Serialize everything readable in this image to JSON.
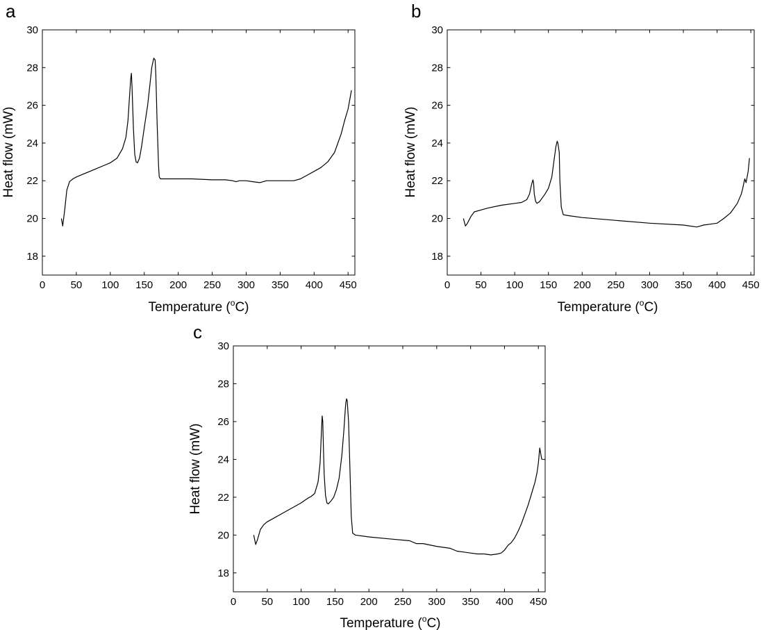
{
  "chart_data": [
    {
      "type": "line",
      "panel_label": "a",
      "xlabel": "Temperature (",
      "xlabel_sup": "o",
      "xlabel_end": "C)",
      "ylabel": "Heat flow (mW)",
      "xlim": [
        0,
        460
      ],
      "ylim": [
        17,
        30
      ],
      "xticks": [
        0,
        50,
        100,
        150,
        200,
        250,
        300,
        350,
        400,
        450
      ],
      "yticks": [
        18,
        20,
        22,
        24,
        26,
        28,
        30
      ],
      "series": [
        {
          "name": "a",
          "x": [
            28,
            30,
            33,
            36,
            40,
            45,
            50,
            60,
            70,
            80,
            90,
            100,
            110,
            118,
            123,
            126,
            128,
            130,
            131,
            132,
            134,
            136,
            138,
            140,
            143,
            146,
            150,
            155,
            158,
            161,
            164,
            166,
            167,
            169,
            171,
            172,
            174,
            176,
            180,
            200,
            220,
            250,
            270,
            280,
            285,
            290,
            300,
            310,
            320,
            330,
            340,
            350,
            360,
            370,
            380,
            390,
            400,
            410,
            420,
            430,
            440,
            445,
            450,
            455
          ],
          "y": [
            20.0,
            19.6,
            20.5,
            21.5,
            21.95,
            22.1,
            22.2,
            22.35,
            22.5,
            22.65,
            22.8,
            22.95,
            23.2,
            23.7,
            24.3,
            25.2,
            26.3,
            27.4,
            27.7,
            27.0,
            24.8,
            23.4,
            23.0,
            22.95,
            23.2,
            23.8,
            24.8,
            26.0,
            27.0,
            28.0,
            28.5,
            28.4,
            27.6,
            25.0,
            22.8,
            22.2,
            22.1,
            22.1,
            22.1,
            22.1,
            22.1,
            22.05,
            22.05,
            22.0,
            21.95,
            22.0,
            22.0,
            21.95,
            21.9,
            22.0,
            22.0,
            22.0,
            22.0,
            22.0,
            22.1,
            22.3,
            22.5,
            22.7,
            23.0,
            23.5,
            24.5,
            25.2,
            25.8,
            26.8
          ]
        }
      ]
    },
    {
      "type": "line",
      "panel_label": "b",
      "xlabel": "Temperature (",
      "xlabel_sup": "o",
      "xlabel_end": "C)",
      "ylabel": "Heat flow (mW)",
      "xlim": [
        0,
        455
      ],
      "ylim": [
        17,
        30
      ],
      "xticks": [
        0,
        50,
        100,
        150,
        200,
        250,
        300,
        350,
        400,
        450
      ],
      "yticks": [
        18,
        20,
        22,
        24,
        26,
        28,
        30
      ],
      "series": [
        {
          "name": "b",
          "x": [
            24,
            27,
            30,
            35,
            40,
            50,
            60,
            80,
            100,
            110,
            118,
            122,
            125,
            127,
            128,
            129,
            131,
            133,
            137,
            141,
            145,
            150,
            155,
            158,
            161,
            163,
            164,
            166,
            167,
            169,
            172,
            180,
            200,
            250,
            300,
            350,
            370,
            375,
            380,
            390,
            400,
            410,
            420,
            430,
            436,
            438,
            441,
            443,
            446,
            448
          ],
          "y": [
            20.0,
            19.6,
            19.75,
            20.1,
            20.35,
            20.45,
            20.55,
            20.7,
            20.8,
            20.85,
            21.0,
            21.3,
            21.8,
            22.05,
            21.9,
            21.3,
            20.9,
            20.8,
            20.9,
            21.1,
            21.3,
            21.6,
            22.2,
            23.0,
            23.8,
            24.1,
            24.0,
            23.5,
            22.0,
            20.6,
            20.2,
            20.15,
            20.05,
            19.9,
            19.75,
            19.65,
            19.55,
            19.6,
            19.65,
            19.7,
            19.75,
            20.0,
            20.3,
            20.8,
            21.3,
            21.6,
            22.1,
            21.9,
            22.5,
            23.2
          ]
        }
      ]
    },
    {
      "type": "line",
      "panel_label": "c",
      "xlabel": "Temperature (",
      "xlabel_sup": "o",
      "xlabel_end": "C)",
      "ylabel": "Heat flow (mW)",
      "xlim": [
        0,
        460
      ],
      "ylim": [
        17,
        30
      ],
      "xticks": [
        0,
        50,
        100,
        150,
        200,
        250,
        300,
        350,
        400,
        450
      ],
      "yticks": [
        18,
        20,
        22,
        24,
        26,
        28,
        30
      ],
      "series": [
        {
          "name": "c",
          "x": [
            30,
            33,
            36,
            40,
            45,
            50,
            60,
            70,
            80,
            90,
            100,
            110,
            115,
            120,
            125,
            128,
            130,
            131,
            132,
            133,
            134,
            136,
            138,
            140,
            144,
            148,
            152,
            156,
            160,
            163,
            165,
            166,
            167,
            168,
            170,
            172,
            174,
            176,
            180,
            200,
            230,
            260,
            270,
            280,
            300,
            320,
            330,
            340,
            350,
            360,
            370,
            380,
            390,
            395,
            400,
            405,
            410,
            415,
            420,
            425,
            430,
            435,
            440,
            445,
            448,
            450,
            452,
            455
          ],
          "y": [
            20.0,
            19.5,
            19.8,
            20.3,
            20.55,
            20.7,
            20.9,
            21.1,
            21.3,
            21.5,
            21.7,
            21.95,
            22.05,
            22.2,
            22.8,
            23.8,
            25.5,
            26.3,
            26.0,
            24.5,
            23.2,
            22.1,
            21.7,
            21.65,
            21.8,
            22.0,
            22.4,
            23.0,
            24.2,
            25.5,
            26.6,
            27.0,
            27.2,
            27.1,
            26.0,
            23.5,
            21.0,
            20.1,
            20.0,
            19.9,
            19.8,
            19.7,
            19.55,
            19.55,
            19.4,
            19.3,
            19.15,
            19.1,
            19.05,
            19.0,
            19.0,
            18.95,
            19.0,
            19.05,
            19.2,
            19.45,
            19.6,
            19.85,
            20.2,
            20.6,
            21.1,
            21.6,
            22.2,
            22.8,
            23.3,
            23.8,
            24.6,
            24.0
          ]
        }
      ]
    }
  ]
}
